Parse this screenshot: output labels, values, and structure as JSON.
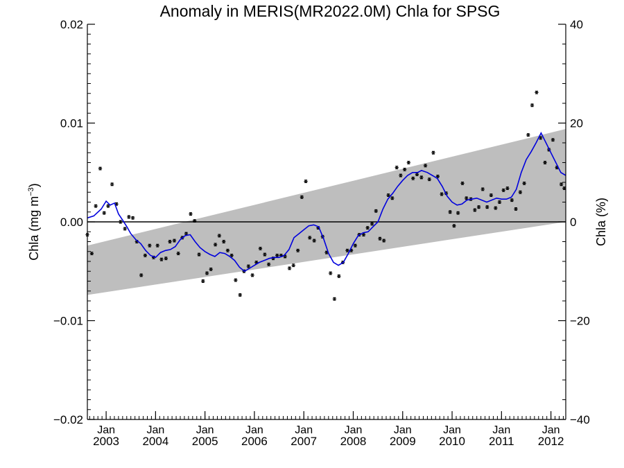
{
  "chart_data": {
    "type": "line",
    "title": "Anomaly in MERIS(MR2022.0M) Chla for SPSG",
    "ylabel_left": "Chla (mg m",
    "ylabel_left_sup": "−3",
    "ylabel_left_end": ")",
    "ylabel_right": "Chla (%)",
    "ylim_left": [
      -0.02,
      0.02
    ],
    "ylim_right": [
      -40,
      40
    ],
    "xlim": [
      2002.62,
      2012.3
    ],
    "yticks_left": [
      {
        "v": 0.02,
        "label": "0.02"
      },
      {
        "v": 0.01,
        "label": "0.01"
      },
      {
        "v": 0.0,
        "label": "0.00"
      },
      {
        "v": -0.01,
        "label": "−0.01"
      },
      {
        "v": -0.02,
        "label": "−0.02"
      }
    ],
    "yticks_right": [
      {
        "v": 40,
        "label": "40"
      },
      {
        "v": 20,
        "label": "20"
      },
      {
        "v": 0,
        "label": "0"
      },
      {
        "v": -20,
        "label": "−20"
      },
      {
        "v": -40,
        "label": "−40"
      }
    ],
    "xticks": [
      {
        "v": 2003.0,
        "month": "Jan",
        "year": "2003"
      },
      {
        "v": 2004.0,
        "month": "Jan",
        "year": "2004"
      },
      {
        "v": 2005.0,
        "month": "Jan",
        "year": "2005"
      },
      {
        "v": 2006.0,
        "month": "Jan",
        "year": "2006"
      },
      {
        "v": 2007.0,
        "month": "Jan",
        "year": "2007"
      },
      {
        "v": 2008.0,
        "month": "Jan",
        "year": "2008"
      },
      {
        "v": 2009.0,
        "month": "Jan",
        "year": "2009"
      },
      {
        "v": 2010.0,
        "month": "Jan",
        "year": "2010"
      },
      {
        "v": 2011.0,
        "month": "Jan",
        "year": "2011"
      },
      {
        "v": 2012.0,
        "month": "Jan",
        "year": "2012"
      }
    ],
    "trend_band": {
      "upper": [
        [
          2002.62,
          -0.0024
        ],
        [
          2012.3,
          0.0094
        ]
      ],
      "lower": [
        [
          2002.62,
          -0.0074
        ],
        [
          2012.3,
          0.0
        ]
      ],
      "color": "#bebebe"
    },
    "zero_line": true,
    "series": [
      {
        "kind": "points",
        "color": "#000000",
        "points": [
          [
            2002.62,
            -0.0013
          ],
          [
            2002.71,
            -0.0032
          ],
          [
            2002.79,
            0.0016
          ],
          [
            2002.88,
            0.0054
          ],
          [
            2002.96,
            0.0009
          ],
          [
            2003.04,
            0.0016
          ],
          [
            2003.12,
            0.0038
          ],
          [
            2003.21,
            0.0018
          ],
          [
            2003.29,
            0.0
          ],
          [
            2003.38,
            -0.0007
          ],
          [
            2003.46,
            0.0005
          ],
          [
            2003.54,
            0.0004
          ],
          [
            2003.62,
            -0.002
          ],
          [
            2003.71,
            -0.0054
          ],
          [
            2003.79,
            -0.0034
          ],
          [
            2003.88,
            -0.0024
          ],
          [
            2003.96,
            -0.0036
          ],
          [
            2004.04,
            -0.0024
          ],
          [
            2004.12,
            -0.0038
          ],
          [
            2004.21,
            -0.0037
          ],
          [
            2004.29,
            -0.002
          ],
          [
            2004.38,
            -0.0019
          ],
          [
            2004.46,
            -0.0032
          ],
          [
            2004.54,
            -0.0016
          ],
          [
            2004.62,
            -0.0012
          ],
          [
            2004.71,
            0.0008
          ],
          [
            2004.79,
            0.0001
          ],
          [
            2004.88,
            -0.0033
          ],
          [
            2004.96,
            -0.006
          ],
          [
            2005.04,
            -0.0052
          ],
          [
            2005.12,
            -0.0048
          ],
          [
            2005.21,
            -0.0023
          ],
          [
            2005.29,
            -0.0014
          ],
          [
            2005.38,
            -0.002
          ],
          [
            2005.46,
            -0.0029
          ],
          [
            2005.54,
            -0.0034
          ],
          [
            2005.62,
            -0.0059
          ],
          [
            2005.71,
            -0.0074
          ],
          [
            2005.79,
            -0.005
          ],
          [
            2005.88,
            -0.0045
          ],
          [
            2005.96,
            -0.0054
          ],
          [
            2006.04,
            -0.0041
          ],
          [
            2006.12,
            -0.0027
          ],
          [
            2006.21,
            -0.0033
          ],
          [
            2006.29,
            -0.0043
          ],
          [
            2006.38,
            -0.0037
          ],
          [
            2006.46,
            -0.0034
          ],
          [
            2006.54,
            -0.0034
          ],
          [
            2006.62,
            -0.0035
          ],
          [
            2006.71,
            -0.0047
          ],
          [
            2006.79,
            -0.0044
          ],
          [
            2006.88,
            -0.0029
          ],
          [
            2006.96,
            0.0025
          ],
          [
            2007.04,
            0.0041
          ],
          [
            2007.12,
            -0.0016
          ],
          [
            2007.21,
            -0.0019
          ],
          [
            2007.29,
            -0.0006
          ],
          [
            2007.38,
            -0.0015
          ],
          [
            2007.46,
            -0.0031
          ],
          [
            2007.54,
            -0.0052
          ],
          [
            2007.62,
            -0.0078
          ],
          [
            2007.71,
            -0.0055
          ],
          [
            2007.79,
            -0.0041
          ],
          [
            2007.88,
            -0.0029
          ],
          [
            2007.96,
            -0.0029
          ],
          [
            2008.04,
            -0.0024
          ],
          [
            2008.12,
            -0.0013
          ],
          [
            2008.21,
            -0.0013
          ],
          [
            2008.29,
            -0.0006
          ],
          [
            2008.38,
            -0.0002
          ],
          [
            2008.46,
            0.0011
          ],
          [
            2008.54,
            -0.0017
          ],
          [
            2008.62,
            -0.0019
          ],
          [
            2008.71,
            0.0027
          ],
          [
            2008.79,
            0.0024
          ],
          [
            2008.88,
            0.0055
          ],
          [
            2008.96,
            0.0047
          ],
          [
            2009.04,
            0.0053
          ],
          [
            2009.12,
            0.006
          ],
          [
            2009.21,
            0.0044
          ],
          [
            2009.29,
            0.0048
          ],
          [
            2009.38,
            0.0045
          ],
          [
            2009.46,
            0.0057
          ],
          [
            2009.54,
            0.0043
          ],
          [
            2009.62,
            0.007
          ],
          [
            2009.71,
            0.0046
          ],
          [
            2009.79,
            0.0028
          ],
          [
            2009.88,
            0.0029
          ],
          [
            2009.96,
            0.001
          ],
          [
            2010.04,
            -0.0004
          ],
          [
            2010.12,
            0.0009
          ],
          [
            2010.21,
            0.0039
          ],
          [
            2010.29,
            0.0024
          ],
          [
            2010.38,
            0.0023
          ],
          [
            2010.46,
            0.0012
          ],
          [
            2010.54,
            0.0015
          ],
          [
            2010.62,
            0.0033
          ],
          [
            2010.71,
            0.0015
          ],
          [
            2010.79,
            0.0027
          ],
          [
            2010.88,
            0.0014
          ],
          [
            2010.96,
            0.002
          ],
          [
            2011.04,
            0.0032
          ],
          [
            2011.12,
            0.0034
          ],
          [
            2011.21,
            0.0022
          ],
          [
            2011.29,
            0.0013
          ],
          [
            2011.38,
            0.003
          ],
          [
            2011.46,
            0.0039
          ],
          [
            2011.54,
            0.0088
          ],
          [
            2011.62,
            0.0118
          ],
          [
            2011.71,
            0.0131
          ],
          [
            2011.79,
            0.0085
          ],
          [
            2011.88,
            0.006
          ],
          [
            2011.96,
            0.0073
          ],
          [
            2012.04,
            0.0083
          ],
          [
            2012.12,
            0.0055
          ],
          [
            2012.21,
            0.0038
          ],
          [
            2012.27,
            0.0034
          ]
        ]
      },
      {
        "kind": "line",
        "color": "#0000dd",
        "points": [
          [
            2002.62,
            0.0004
          ],
          [
            2002.75,
            0.0006
          ],
          [
            2002.9,
            0.0013
          ],
          [
            2003.0,
            0.0021
          ],
          [
            2003.08,
            0.0017
          ],
          [
            2003.17,
            0.0019
          ],
          [
            2003.25,
            0.0008
          ],
          [
            2003.33,
            0.0002
          ],
          [
            2003.42,
            -0.0005
          ],
          [
            2003.5,
            -0.0012
          ],
          [
            2003.6,
            -0.0018
          ],
          [
            2003.7,
            -0.0022
          ],
          [
            2003.8,
            -0.0029
          ],
          [
            2003.9,
            -0.0034
          ],
          [
            2004.0,
            -0.0036
          ],
          [
            2004.1,
            -0.0031
          ],
          [
            2004.2,
            -0.0029
          ],
          [
            2004.3,
            -0.0028
          ],
          [
            2004.4,
            -0.0025
          ],
          [
            2004.5,
            -0.0018
          ],
          [
            2004.6,
            -0.0014
          ],
          [
            2004.7,
            -0.0013
          ],
          [
            2004.8,
            -0.002
          ],
          [
            2004.9,
            -0.0026
          ],
          [
            2005.0,
            -0.003
          ],
          [
            2005.1,
            -0.0033
          ],
          [
            2005.2,
            -0.0035
          ],
          [
            2005.3,
            -0.0031
          ],
          [
            2005.4,
            -0.0032
          ],
          [
            2005.5,
            -0.0035
          ],
          [
            2005.6,
            -0.0039
          ],
          [
            2005.7,
            -0.0046
          ],
          [
            2005.8,
            -0.005
          ],
          [
            2005.9,
            -0.0047
          ],
          [
            2006.0,
            -0.0044
          ],
          [
            2006.1,
            -0.0041
          ],
          [
            2006.2,
            -0.0039
          ],
          [
            2006.3,
            -0.0037
          ],
          [
            2006.4,
            -0.0036
          ],
          [
            2006.5,
            -0.0036
          ],
          [
            2006.6,
            -0.0034
          ],
          [
            2006.7,
            -0.0028
          ],
          [
            2006.8,
            -0.0016
          ],
          [
            2006.9,
            -0.0012
          ],
          [
            2007.0,
            -0.0008
          ],
          [
            2007.1,
            -0.0004
          ],
          [
            2007.2,
            -0.0003
          ],
          [
            2007.3,
            -0.0005
          ],
          [
            2007.4,
            -0.0017
          ],
          [
            2007.5,
            -0.0032
          ],
          [
            2007.6,
            -0.0041
          ],
          [
            2007.7,
            -0.0044
          ],
          [
            2007.8,
            -0.0041
          ],
          [
            2007.9,
            -0.0032
          ],
          [
            2008.0,
            -0.0022
          ],
          [
            2008.1,
            -0.0014
          ],
          [
            2008.2,
            -0.0011
          ],
          [
            2008.3,
            -0.001
          ],
          [
            2008.4,
            -0.0005
          ],
          [
            2008.5,
            0.0
          ],
          [
            2008.6,
            0.0013
          ],
          [
            2008.7,
            0.0023
          ],
          [
            2008.8,
            0.0029
          ],
          [
            2008.9,
            0.0036
          ],
          [
            2009.0,
            0.0042
          ],
          [
            2009.1,
            0.0047
          ],
          [
            2009.2,
            0.005
          ],
          [
            2009.3,
            0.005
          ],
          [
            2009.38,
            0.0052
          ],
          [
            2009.5,
            0.005
          ],
          [
            2009.6,
            0.0047
          ],
          [
            2009.7,
            0.0044
          ],
          [
            2009.8,
            0.0036
          ],
          [
            2009.9,
            0.0026
          ],
          [
            2010.0,
            0.002
          ],
          [
            2010.1,
            0.0017
          ],
          [
            2010.2,
            0.0018
          ],
          [
            2010.3,
            0.0022
          ],
          [
            2010.4,
            0.0023
          ],
          [
            2010.5,
            0.0024
          ],
          [
            2010.6,
            0.0022
          ],
          [
            2010.7,
            0.002
          ],
          [
            2010.8,
            0.0022
          ],
          [
            2010.9,
            0.0024
          ],
          [
            2011.0,
            0.0023
          ],
          [
            2011.1,
            0.0023
          ],
          [
            2011.2,
            0.0025
          ],
          [
            2011.3,
            0.0033
          ],
          [
            2011.4,
            0.005
          ],
          [
            2011.5,
            0.0063
          ],
          [
            2011.6,
            0.0071
          ],
          [
            2011.7,
            0.008
          ],
          [
            2011.8,
            0.009
          ],
          [
            2011.9,
            0.008
          ],
          [
            2012.0,
            0.007
          ],
          [
            2012.1,
            0.006
          ],
          [
            2012.2,
            0.005
          ],
          [
            2012.3,
            0.0047
          ]
        ]
      }
    ]
  }
}
